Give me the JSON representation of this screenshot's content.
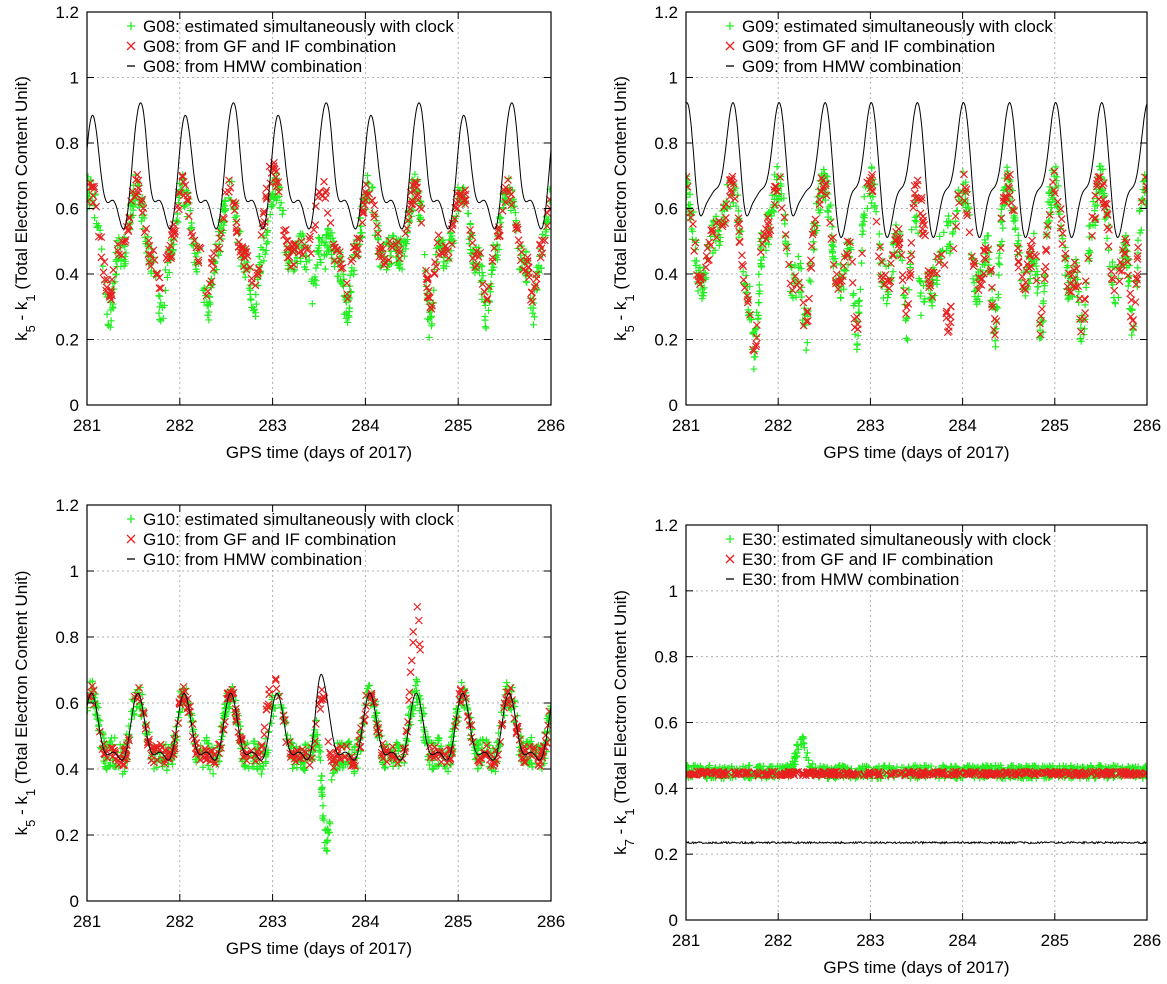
{
  "figure": {
    "xlabel": "GPS time (days of 2017)",
    "colors": {
      "clock": "#22ee22",
      "gfif": "#e82020",
      "hmw": "#000000",
      "grid": "#b0b0b0"
    }
  },
  "chart_data": [
    {
      "type": "scatter",
      "panel": "top-left",
      "xlim": [
        281,
        286
      ],
      "ylim": [
        0,
        1.2
      ],
      "xticks": [
        "281",
        "282",
        "283",
        "284",
        "285",
        "286"
      ],
      "yticks": [
        "0",
        "0.2",
        "0.4",
        "0.6",
        "0.8",
        "1",
        "1.2"
      ],
      "xlabel": "GPS time (days of 2017)",
      "ylabel_main": "k",
      "ylabel_sub1": "5",
      "ylabel_mid": " - k",
      "ylabel_sub2": "1",
      "ylabel_tail": " (Total Electron Content Unit)",
      "grid": true,
      "legend_position": "top-center",
      "series": [
        {
          "name": "G08: estimated simultaneously with clock",
          "marker": "plus",
          "color": "#22ee22",
          "model": {
            "mean": 0.52,
            "amp": 0.09,
            "phase": 0.2,
            "amp2": 0.05,
            "noise": 0.05,
            "dipDepth": 0.2,
            "dips": [
              281.25,
              281.8,
              282.3,
              282.8,
              283.45,
              283.55,
              283.8,
              284.7,
              285.3,
              285.8
            ]
          }
        },
        {
          "name": "G08: from GF and IF combination",
          "marker": "cross",
          "color": "#e82020",
          "model": {
            "mean": 0.53,
            "amp": 0.09,
            "phase": 0.2,
            "amp2": 0.05,
            "noise": 0.035,
            "dipDepth": 0.15,
            "dips": [
              281.25,
              281.8,
              282.3,
              282.8,
              283.8,
              284.7,
              285.3,
              285.8
            ],
            "bumps": [
              [
                282.95,
                0.12
              ]
            ]
          }
        },
        {
          "name": "G08: from HMW combination",
          "marker": "line",
          "color": "#000000",
          "model": {
            "mean": 0.68,
            "amp": 0.14,
            "phase": 0.1,
            "amp2": 0.07,
            "noise": 0.0,
            "peaks": [
              281.62,
              282.62,
              283.62,
              284.62,
              285.62
            ]
          }
        }
      ]
    },
    {
      "type": "scatter",
      "panel": "top-right",
      "xlim": [
        281,
        286
      ],
      "ylim": [
        0,
        1.2
      ],
      "xticks": [
        "281",
        "282",
        "283",
        "284",
        "285",
        "286"
      ],
      "yticks": [
        "0",
        "0.2",
        "0.4",
        "0.6",
        "0.8",
        "1",
        "1.2"
      ],
      "xlabel": "GPS time (days of 2017)",
      "ylabel_main": "k",
      "ylabel_sub1": "5",
      "ylabel_mid": " - k",
      "ylabel_sub2": "1",
      "ylabel_tail": " (Total Electron Content Unit)",
      "grid": true,
      "legend_position": "top-center",
      "series": [
        {
          "name": "G09: estimated simultaneously with clock",
          "marker": "plus",
          "color": "#22ee22",
          "model": {
            "mean": 0.52,
            "amp": 0.12,
            "phase": 0.35,
            "amp2": 0.06,
            "noise": 0.06,
            "dipDepth": 0.3,
            "dips": [
              281.75,
              282.3,
              282.85,
              283.4,
              283.55,
              284.35,
              284.85,
              285.3,
              285.85
            ]
          }
        },
        {
          "name": "G09: from GF and IF combination",
          "marker": "cross",
          "color": "#e82020",
          "model": {
            "mean": 0.52,
            "amp": 0.12,
            "phase": 0.35,
            "amp2": 0.06,
            "noise": 0.04,
            "dipDepth": 0.28,
            "dips": [
              281.75,
              282.3,
              282.85,
              283.4,
              283.85,
              284.35,
              284.85,
              285.3,
              285.85
            ]
          }
        },
        {
          "name": "G09: from HMW combination",
          "marker": "line",
          "color": "#000000",
          "model": {
            "mean": 0.7,
            "amp": 0.17,
            "phase": 0.3,
            "amp2": 0.07,
            "noise": 0.0,
            "peaks": [
              281.2,
              281.7,
              282.2
            ]
          }
        }
      ]
    },
    {
      "type": "scatter",
      "panel": "bottom-left",
      "xlim": [
        281,
        286
      ],
      "ylim": [
        0,
        1.2
      ],
      "xticks": [
        "281",
        "282",
        "283",
        "284",
        "285",
        "286"
      ],
      "yticks": [
        "0",
        "0.2",
        "0.4",
        "0.6",
        "0.8",
        "1",
        "1.2"
      ],
      "xlabel": "GPS time (days of 2017)",
      "ylabel_main": "k",
      "ylabel_sub1": "5",
      "ylabel_mid": " - k",
      "ylabel_sub2": "1",
      "ylabel_tail": " (Total Electron Content Unit)",
      "grid": true,
      "legend_position": "top-center",
      "series": [
        {
          "name": "G10: estimated simultaneously with clock",
          "marker": "plus",
          "color": "#22ee22",
          "model": {
            "mean": 0.5,
            "amp": 0.09,
            "phase": 0.15,
            "amp2": 0.04,
            "noise": 0.045,
            "dipDepth": 0.28,
            "dips": [
              283.55,
              283.6
            ]
          }
        },
        {
          "name": "G10: from GF and IF combination",
          "marker": "cross",
          "color": "#e82020",
          "model": {
            "mean": 0.5,
            "amp": 0.09,
            "phase": 0.15,
            "amp2": 0.04,
            "noise": 0.025,
            "dipDepth": 0.1,
            "dips": [
              283.62
            ],
            "bumps": [
              [
                284.55,
                0.25
              ],
              [
                282.95,
                0.1
              ]
            ]
          }
        },
        {
          "name": "G10: from HMW combination",
          "marker": "line",
          "color": "#000000",
          "model": {
            "mean": 0.5,
            "amp": 0.09,
            "phase": 0.15,
            "amp2": 0.04,
            "noise": 0.0,
            "peaks": [
              283.5
            ]
          }
        }
      ]
    },
    {
      "type": "scatter",
      "panel": "bottom-right",
      "xlim": [
        281,
        286
      ],
      "ylim": [
        0,
        1.2
      ],
      "xticks": [
        "281",
        "282",
        "283",
        "284",
        "285",
        "286"
      ],
      "yticks": [
        "0",
        "0.2",
        "0.4",
        "0.6",
        "0.8",
        "1",
        "1.2"
      ],
      "xlabel": "GPS time (days of 2017)",
      "ylabel_main": "k",
      "ylabel_sub1": "7",
      "ylabel_mid": " - k",
      "ylabel_sub2": "1",
      "ylabel_tail": " (Total Electron Content Unit)",
      "grid": true,
      "legend_position": "top-center",
      "series": [
        {
          "name": "E30: estimated simultaneously with clock",
          "marker": "plus",
          "color": "#22ee22",
          "model": {
            "mean": 0.45,
            "amp": 0.0,
            "phase": 0,
            "amp2": 0.0,
            "noise": 0.02,
            "bumps": [
              [
                282.25,
                0.1
              ]
            ]
          }
        },
        {
          "name": "E30: from GF and IF combination",
          "marker": "cross",
          "color": "#e82020",
          "model": {
            "mean": 0.445,
            "amp": 0.0,
            "phase": 0,
            "amp2": 0.0,
            "noise": 0.006
          }
        },
        {
          "name": "E30: from HMW combination",
          "marker": "line",
          "color": "#000000",
          "model": {
            "mean": 0.235,
            "amp": 0.0,
            "phase": 0,
            "amp2": 0.0,
            "noise": 0.003
          }
        }
      ]
    }
  ]
}
